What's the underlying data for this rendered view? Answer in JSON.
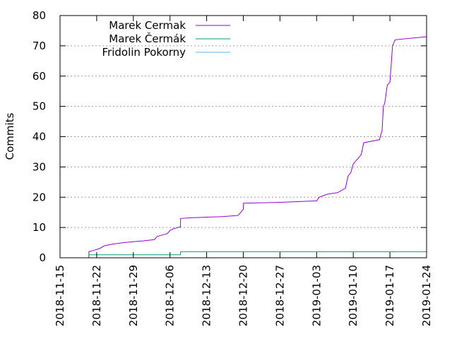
{
  "chart_data": {
    "type": "line",
    "title": "",
    "ylabel": "Commits",
    "xlabel": "",
    "ylim": [
      0,
      80
    ],
    "yticks": [
      0,
      10,
      20,
      30,
      40,
      50,
      60,
      70,
      80
    ],
    "xlim": [
      "2018-11-15",
      "2019-01-24"
    ],
    "xticks": [
      "2018-11-15",
      "2018-11-22",
      "2018-11-29",
      "2018-12-06",
      "2018-12-13",
      "2018-12-20",
      "2018-12-27",
      "2019-01-03",
      "2019-01-10",
      "2019-01-17",
      "2019-01-24"
    ],
    "grid": "horizontal dotted",
    "legend": "top-left",
    "series": [
      {
        "name": "Marek Cermak",
        "color": "#9400d3",
        "points": [
          [
            "2018-11-20T12:00",
            0
          ],
          [
            "2018-11-20T12:30",
            2
          ],
          [
            "2018-11-21T12:00",
            2.5
          ],
          [
            "2018-11-22T12:00",
            3
          ],
          [
            "2018-11-23T12:00",
            4
          ],
          [
            "2018-11-25T00:00",
            4.5
          ],
          [
            "2018-11-27T00:00",
            5
          ],
          [
            "2018-11-29T00:00",
            5.3
          ],
          [
            "2018-12-01T00:00",
            5.6
          ],
          [
            "2018-12-03T00:00",
            6
          ],
          [
            "2018-12-03T12:00",
            7
          ],
          [
            "2018-12-04T12:00",
            7.5
          ],
          [
            "2018-12-05T12:00",
            8
          ],
          [
            "2018-12-06T00:00",
            9
          ],
          [
            "2018-12-06T12:00",
            9.5
          ],
          [
            "2018-12-07T12:00",
            10
          ],
          [
            "2018-12-08T00:00",
            10.2
          ],
          [
            "2018-12-08T00:30",
            13
          ],
          [
            "2018-12-10T00:00",
            13.2
          ],
          [
            "2018-12-13T00:00",
            13.4
          ],
          [
            "2018-12-16T00:00",
            13.6
          ],
          [
            "2018-12-19T00:00",
            14
          ],
          [
            "2018-12-19T12:00",
            15
          ],
          [
            "2018-12-20T00:00",
            16
          ],
          [
            "2018-12-20T00:30",
            18
          ],
          [
            "2018-12-27T00:00",
            18.3
          ],
          [
            "2019-01-03T00:00",
            18.8
          ],
          [
            "2019-01-03T12:00",
            20
          ],
          [
            "2019-01-05T00:00",
            21
          ],
          [
            "2019-01-07T00:00",
            21.5
          ],
          [
            "2019-01-08T12:00",
            23
          ],
          [
            "2019-01-09T00:00",
            27
          ],
          [
            "2019-01-09T12:00",
            28
          ],
          [
            "2019-01-10T00:00",
            31
          ],
          [
            "2019-01-10T12:00",
            32
          ],
          [
            "2019-01-11T00:00",
            33
          ],
          [
            "2019-01-11T12:00",
            34
          ],
          [
            "2019-01-12T00:00",
            38
          ],
          [
            "2019-01-15T00:00",
            39
          ],
          [
            "2019-01-15T12:00",
            42
          ],
          [
            "2019-01-15T18:00",
            50
          ],
          [
            "2019-01-16T00:00",
            51
          ],
          [
            "2019-01-16T12:00",
            57
          ],
          [
            "2019-01-17T00:00",
            58
          ],
          [
            "2019-01-17T12:00",
            70
          ],
          [
            "2019-01-18T00:00",
            72
          ],
          [
            "2019-01-24T00:00",
            73
          ]
        ]
      },
      {
        "name": "Marek Čermák",
        "color": "#009e73",
        "points": [
          [
            "2018-11-20T12:00",
            0
          ],
          [
            "2018-11-20T12:30",
            1
          ],
          [
            "2018-12-08T00:00",
            1
          ],
          [
            "2018-12-08T00:30",
            2
          ],
          [
            "2019-01-24T00:00",
            2
          ]
        ]
      },
      {
        "name": "Fridolin Pokorny",
        "color": "#56b4e9",
        "points": [
          [
            "2018-11-20T12:00",
            0
          ],
          [
            "2019-01-24T00:00",
            0
          ]
        ]
      }
    ]
  }
}
